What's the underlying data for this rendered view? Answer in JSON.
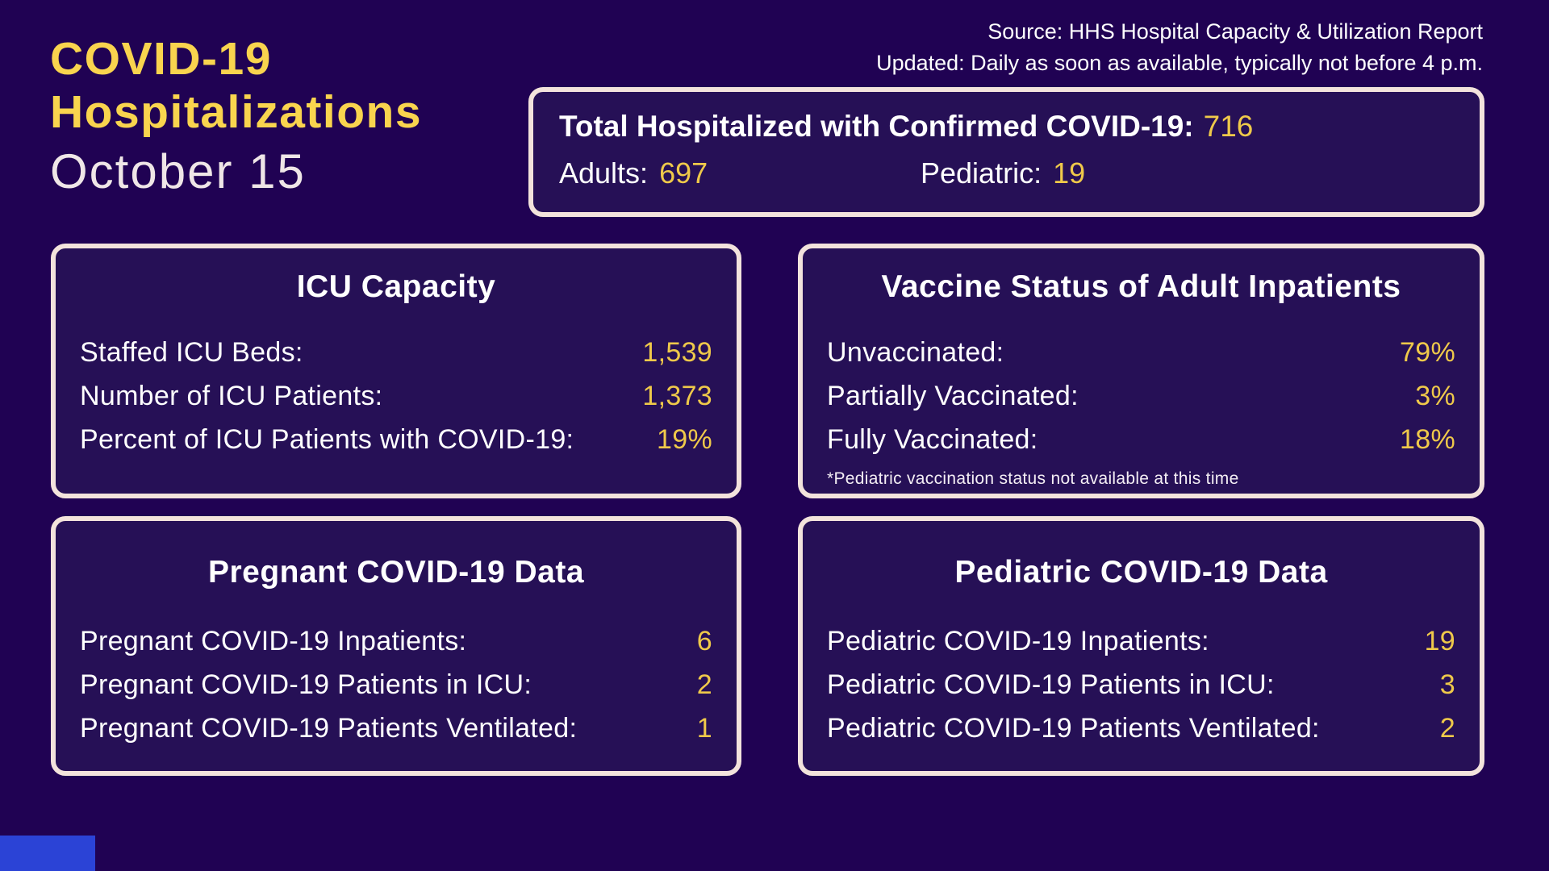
{
  "header": {
    "title_line1": "COVID-19",
    "title_line2": "Hospitalizations",
    "date": "October 15",
    "source_line1": "Source: HHS Hospital Capacity & Utilization Report",
    "source_line2": "Updated: Daily as soon as available, typically not before 4 p.m."
  },
  "colors": {
    "background": "#200253",
    "panel_background": "#261056",
    "panel_border": "#F3E3DC",
    "title_yellow": "#F9D44E",
    "value_yellow": "#EFC94A",
    "text_white": "#FFFFFF",
    "date_color": "#EFE6E7",
    "bottom_accent_blue": "#2B43D6"
  },
  "total_panel": {
    "heading_label": "Total Hospitalized with Confirmed COVID-19:",
    "heading_value": "716",
    "adults_label": "Adults:",
    "adults_value": "697",
    "pediatric_label": "Pediatric:",
    "pediatric_value": "19"
  },
  "icu_panel": {
    "title": "ICU Capacity",
    "rows": [
      {
        "label": "Staffed ICU Beds:",
        "value": "1,539"
      },
      {
        "label": "Number of ICU Patients:",
        "value": "1,373"
      },
      {
        "label": "Percent of ICU Patients with COVID-19:",
        "value": "19%"
      }
    ]
  },
  "vaccine_panel": {
    "title": "Vaccine Status of Adult Inpatients",
    "rows": [
      {
        "label": "Unvaccinated:",
        "value": "79%"
      },
      {
        "label": "Partially Vaccinated:",
        "value": "3%"
      },
      {
        "label": "Fully Vaccinated:",
        "value": "18%"
      }
    ],
    "footnote": "*Pediatric vaccination status not available at this time"
  },
  "pregnant_panel": {
    "title": "Pregnant COVID-19 Data",
    "rows": [
      {
        "label": "Pregnant COVID-19 Inpatients:",
        "value": "6"
      },
      {
        "label": "Pregnant COVID-19 Patients in ICU:",
        "value": "2"
      },
      {
        "label": "Pregnant COVID-19 Patients Ventilated:",
        "value": "1"
      }
    ]
  },
  "pediatric_panel": {
    "title": "Pediatric COVID-19 Data",
    "rows": [
      {
        "label": "Pediatric COVID-19 Inpatients:",
        "value": "19"
      },
      {
        "label": "Pediatric COVID-19 Patients in ICU:",
        "value": "3"
      },
      {
        "label": "Pediatric COVID-19 Patients Ventilated:",
        "value": "2"
      }
    ]
  },
  "chart_data": [
    {
      "type": "table",
      "title": "Total Hospitalized with Confirmed COVID-19",
      "rows": [
        [
          "Total hospitalized",
          716
        ],
        [
          "Adults",
          697
        ],
        [
          "Pediatric",
          19
        ]
      ]
    },
    {
      "type": "table",
      "title": "ICU Capacity",
      "rows": [
        [
          "Staffed ICU Beds",
          1539
        ],
        [
          "Number of ICU Patients",
          1373
        ],
        [
          "Percent of ICU Patients with COVID-19",
          "19%"
        ]
      ]
    },
    {
      "type": "table",
      "title": "Vaccine Status of Adult Inpatients",
      "rows": [
        [
          "Unvaccinated",
          "79%"
        ],
        [
          "Partially Vaccinated",
          "3%"
        ],
        [
          "Fully Vaccinated",
          "18%"
        ]
      ],
      "note": "*Pediatric vaccination status not available at this time"
    },
    {
      "type": "table",
      "title": "Pregnant COVID-19 Data",
      "rows": [
        [
          "Pregnant COVID-19 Inpatients",
          6
        ],
        [
          "Pregnant COVID-19 Patients in ICU",
          2
        ],
        [
          "Pregnant COVID-19 Patients Ventilated",
          1
        ]
      ]
    },
    {
      "type": "table",
      "title": "Pediatric COVID-19 Data",
      "rows": [
        [
          "Pediatric COVID-19 Inpatients",
          19
        ],
        [
          "Pediatric COVID-19 Patients in ICU",
          3
        ],
        [
          "Pediatric COVID-19 Patients Ventilated",
          2
        ]
      ]
    }
  ]
}
